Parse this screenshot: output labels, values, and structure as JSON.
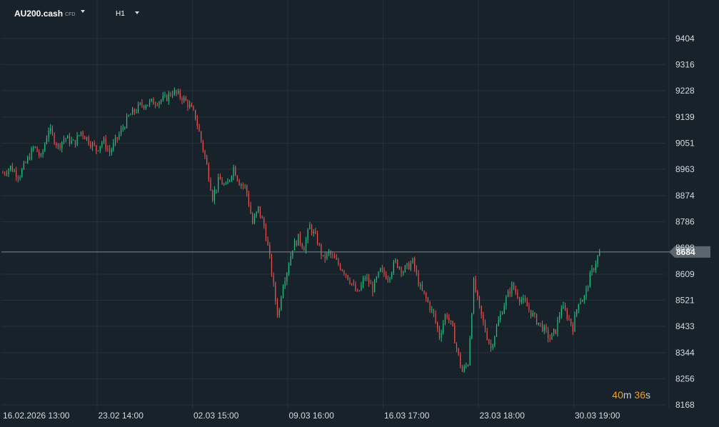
{
  "header": {
    "symbol": "AU200.cash",
    "symbol_type": "CFD",
    "timeframe": "H1"
  },
  "countdown": {
    "minutes": "40",
    "minutes_unit": "m",
    "seconds": "36",
    "seconds_unit": "s"
  },
  "colors": {
    "background": "#18222a",
    "grid": "#243038",
    "up": "#26c281",
    "down": "#e9524f",
    "price_line": "#7e8b94",
    "price_label_bg": "#5b6770",
    "countdown": "#f0a020"
  },
  "icons": [
    "chevron-down-icon"
  ],
  "chart_data": {
    "type": "candlestick",
    "instrument": "AU200.cash",
    "timeframe": "H1",
    "current_price": 8684,
    "y_axis": {
      "ticks": [
        9404,
        9316,
        9228,
        9139,
        9051,
        8963,
        8874,
        8786,
        8609,
        8521,
        8433,
        8344,
        8256,
        8168
      ],
      "partially_hidden_tick": "8698",
      "range": [
        8168,
        9404
      ]
    },
    "x_axis": {
      "ticks": [
        "16.02.2026 13:00",
        "23.02 14:00",
        "02.03 15:00",
        "09.03 16:00",
        "16.03 17:00",
        "23.03 18:00",
        "30.03 19:00"
      ]
    },
    "grid": true,
    "path": [
      {
        "t": 0.0,
        "p": 8950
      },
      {
        "t": 0.08,
        "p": 8970
      },
      {
        "t": 0.17,
        "p": 8940
      },
      {
        "t": 0.25,
        "p": 8990
      },
      {
        "t": 0.33,
        "p": 9040
      },
      {
        "t": 0.4,
        "p": 9000
      },
      {
        "t": 0.48,
        "p": 9100
      },
      {
        "t": 0.58,
        "p": 9040
      },
      {
        "t": 0.65,
        "p": 9070
      },
      {
        "t": 0.75,
        "p": 9050
      },
      {
        "t": 0.82,
        "p": 9090
      },
      {
        "t": 0.9,
        "p": 9060
      },
      {
        "t": 0.98,
        "p": 9030
      },
      {
        "t": 1.05,
        "p": 9060
      },
      {
        "t": 1.12,
        "p": 9020
      },
      {
        "t": 1.22,
        "p": 9080
      },
      {
        "t": 1.32,
        "p": 9140
      },
      {
        "t": 1.45,
        "p": 9180
      },
      {
        "t": 1.58,
        "p": 9190
      },
      {
        "t": 1.7,
        "p": 9200
      },
      {
        "t": 1.78,
        "p": 9225
      },
      {
        "t": 1.88,
        "p": 9205
      },
      {
        "t": 1.95,
        "p": 9180
      },
      {
        "t": 2.02,
        "p": 9140
      },
      {
        "t": 2.08,
        "p": 9060
      },
      {
        "t": 2.15,
        "p": 8960
      },
      {
        "t": 2.2,
        "p": 8870
      },
      {
        "t": 2.27,
        "p": 8930
      },
      {
        "t": 2.34,
        "p": 8900
      },
      {
        "t": 2.42,
        "p": 8970
      },
      {
        "t": 2.48,
        "p": 8920
      },
      {
        "t": 2.55,
        "p": 8900
      },
      {
        "t": 2.62,
        "p": 8780
      },
      {
        "t": 2.68,
        "p": 8830
      },
      {
        "t": 2.75,
        "p": 8760
      },
      {
        "t": 2.8,
        "p": 8660
      },
      {
        "t": 2.86,
        "p": 8520
      },
      {
        "t": 2.89,
        "p": 8460
      },
      {
        "t": 2.93,
        "p": 8570
      },
      {
        "t": 2.98,
        "p": 8620
      },
      {
        "t": 3.04,
        "p": 8700
      },
      {
        "t": 3.1,
        "p": 8730
      },
      {
        "t": 3.16,
        "p": 8700
      },
      {
        "t": 3.22,
        "p": 8770
      },
      {
        "t": 3.3,
        "p": 8720
      },
      {
        "t": 3.36,
        "p": 8660
      },
      {
        "t": 3.42,
        "p": 8680
      },
      {
        "t": 3.5,
        "p": 8650
      },
      {
        "t": 3.58,
        "p": 8620
      },
      {
        "t": 3.64,
        "p": 8590
      },
      {
        "t": 3.72,
        "p": 8540
      },
      {
        "t": 3.8,
        "p": 8600
      },
      {
        "t": 3.88,
        "p": 8560
      },
      {
        "t": 3.96,
        "p": 8620
      },
      {
        "t": 4.04,
        "p": 8600
      },
      {
        "t": 4.12,
        "p": 8650
      },
      {
        "t": 4.2,
        "p": 8620
      },
      {
        "t": 4.3,
        "p": 8650
      },
      {
        "t": 4.38,
        "p": 8560
      },
      {
        "t": 4.45,
        "p": 8520
      },
      {
        "t": 4.52,
        "p": 8470
      },
      {
        "t": 4.58,
        "p": 8400
      },
      {
        "t": 4.65,
        "p": 8480
      },
      {
        "t": 4.72,
        "p": 8420
      },
      {
        "t": 4.78,
        "p": 8330
      },
      {
        "t": 4.82,
        "p": 8280
      },
      {
        "t": 4.88,
        "p": 8310
      },
      {
        "t": 4.94,
        "p": 8580
      },
      {
        "t": 5.0,
        "p": 8490
      },
      {
        "t": 5.06,
        "p": 8420
      },
      {
        "t": 5.12,
        "p": 8360
      },
      {
        "t": 5.18,
        "p": 8430
      },
      {
        "t": 5.26,
        "p": 8510
      },
      {
        "t": 5.34,
        "p": 8570
      },
      {
        "t": 5.42,
        "p": 8530
      },
      {
        "t": 5.5,
        "p": 8500
      },
      {
        "t": 5.58,
        "p": 8460
      },
      {
        "t": 5.66,
        "p": 8430
      },
      {
        "t": 5.74,
        "p": 8390
      },
      {
        "t": 5.8,
        "p": 8420
      },
      {
        "t": 5.86,
        "p": 8500
      },
      {
        "t": 5.92,
        "p": 8470
      },
      {
        "t": 5.98,
        "p": 8430
      },
      {
        "t": 6.04,
        "p": 8520
      },
      {
        "t": 6.1,
        "p": 8530
      },
      {
        "t": 6.16,
        "p": 8600
      },
      {
        "t": 6.22,
        "p": 8650
      },
      {
        "t": 6.26,
        "p": 8684
      }
    ]
  }
}
